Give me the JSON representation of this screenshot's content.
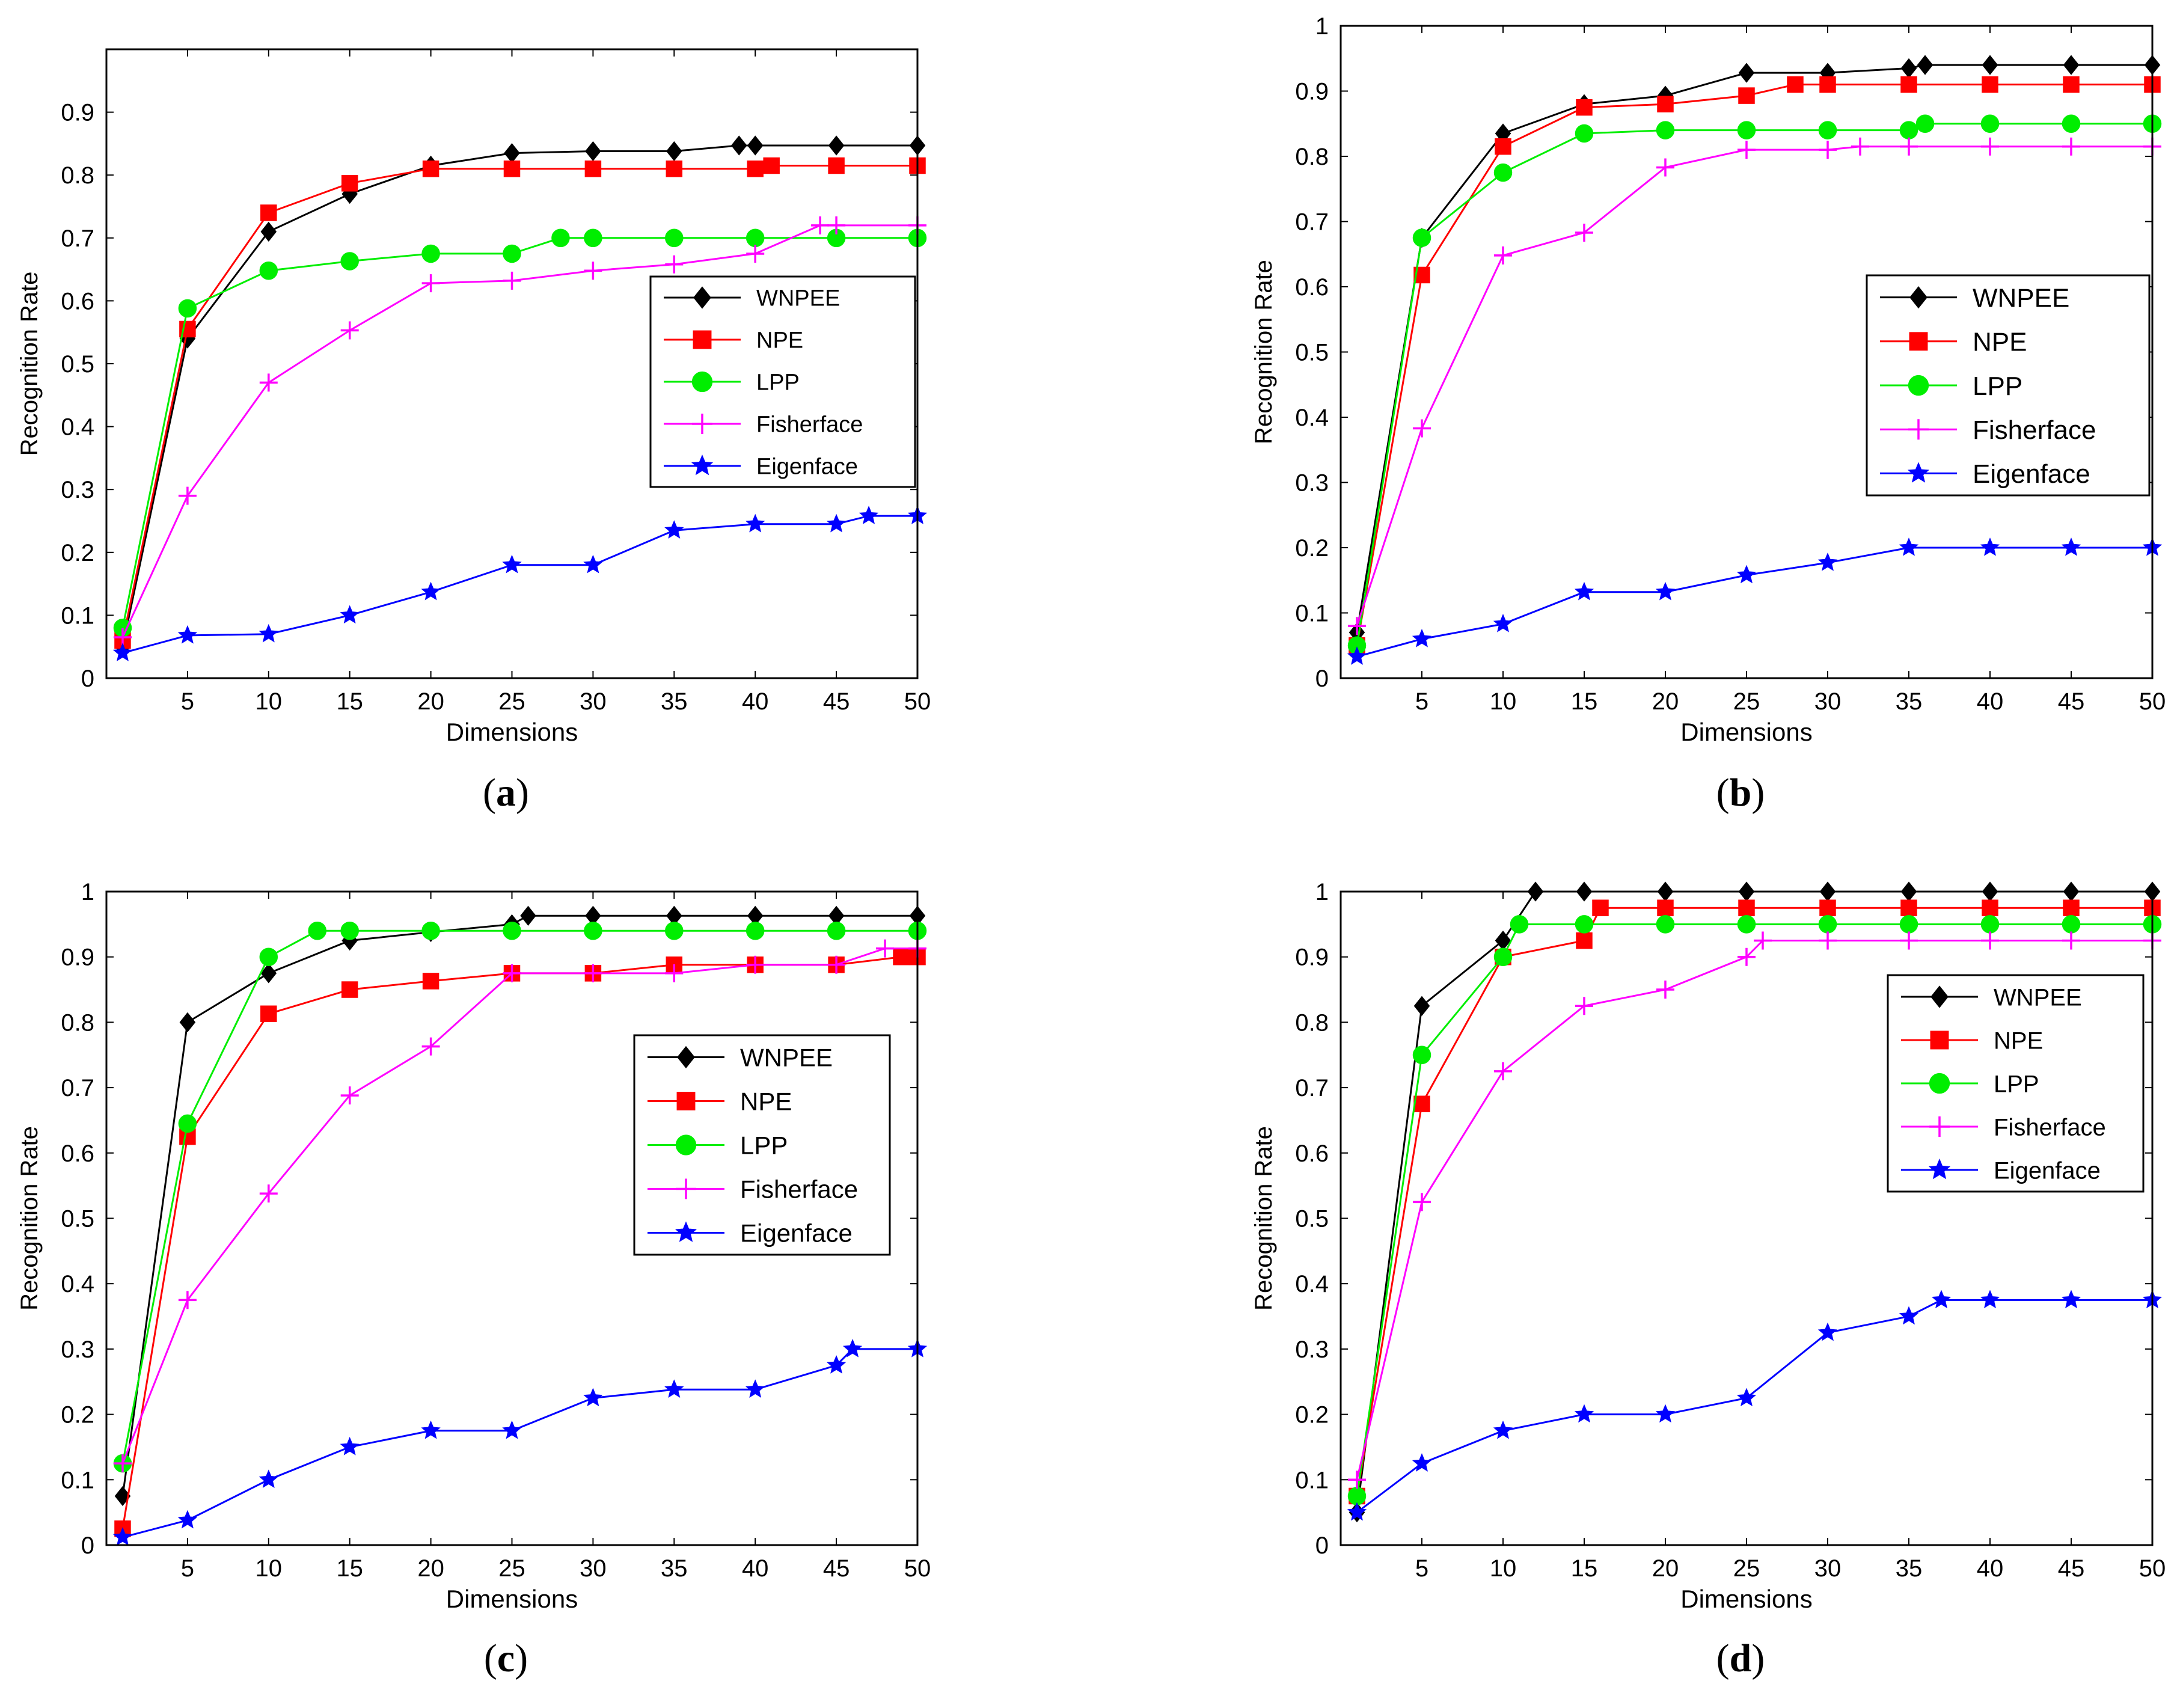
{
  "chart_data": [
    {
      "type": "line",
      "label": "a",
      "xlabel": "Dimensions",
      "ylabel": "Recognition Rate",
      "xlim": [
        0,
        50
      ],
      "ylim": [
        0,
        1
      ],
      "xticks": [
        5,
        10,
        15,
        20,
        25,
        30,
        35,
        40,
        45,
        50
      ],
      "yticks": [
        0,
        0.1,
        0.2,
        0.3,
        0.4,
        0.5,
        0.6,
        0.7,
        0.8,
        0.9
      ],
      "ytick_labels": [
        "0",
        "0.1",
        "0.2",
        "0.3",
        "0.4",
        "0.5",
        "0.6",
        "0.7",
        "0.8",
        "0.9"
      ],
      "legend_position": "center-right",
      "series": [
        {
          "name": "WNPEE",
          "color": "#000000",
          "marker": "diamond",
          "x": [
            1,
            5,
            10,
            15,
            20,
            25,
            30,
            35,
            39,
            40,
            45,
            50
          ],
          "y": [
            0.05,
            0.54,
            0.71,
            0.77,
            0.815,
            0.835,
            0.838,
            0.838,
            0.847,
            0.847,
            0.847,
            0.847
          ]
        },
        {
          "name": "NPE",
          "color": "#ff0000",
          "marker": "square",
          "x": [
            1,
            5,
            10,
            15,
            20,
            25,
            30,
            35,
            40,
            41,
            45,
            50
          ],
          "y": [
            0.06,
            0.555,
            0.74,
            0.787,
            0.81,
            0.81,
            0.81,
            0.81,
            0.81,
            0.815,
            0.815,
            0.815
          ]
        },
        {
          "name": "LPP",
          "color": "#00ee00",
          "marker": "circle",
          "x": [
            1,
            5,
            10,
            15,
            20,
            25,
            28,
            30,
            35,
            40,
            45,
            50
          ],
          "y": [
            0.08,
            0.588,
            0.648,
            0.663,
            0.675,
            0.675,
            0.7,
            0.7,
            0.7,
            0.7,
            0.7,
            0.7
          ]
        },
        {
          "name": "Fisherface",
          "color": "#ff00ff",
          "marker": "plus",
          "x": [
            1,
            5,
            10,
            15,
            20,
            25,
            30,
            35,
            40,
            44,
            45,
            50
          ],
          "y": [
            0.065,
            0.29,
            0.47,
            0.553,
            0.628,
            0.632,
            0.648,
            0.658,
            0.675,
            0.72,
            0.72,
            0.72
          ]
        },
        {
          "name": "Eigenface",
          "color": "#0000ff",
          "marker": "star",
          "x": [
            1,
            5,
            10,
            15,
            20,
            25,
            30,
            35,
            40,
            45,
            47,
            50
          ],
          "y": [
            0.04,
            0.068,
            0.07,
            0.1,
            0.137,
            0.18,
            0.18,
            0.235,
            0.245,
            0.245,
            0.258,
            0.258
          ]
        }
      ]
    },
    {
      "type": "line",
      "label": "b",
      "xlabel": "Dimensions",
      "ylabel": "Recognition Rate",
      "xlim": [
        0,
        50
      ],
      "ylim": [
        0,
        1
      ],
      "xticks": [
        5,
        10,
        15,
        20,
        25,
        30,
        35,
        40,
        45,
        50
      ],
      "yticks": [
        0,
        0.1,
        0.2,
        0.3,
        0.4,
        0.5,
        0.6,
        0.7,
        0.8,
        0.9,
        1
      ],
      "ytick_labels": [
        "0",
        "0.1",
        "0.2",
        "0.3",
        "0.4",
        "0.5",
        "0.6",
        "0.7",
        "0.8",
        "0.9",
        "1"
      ],
      "legend_position": "center-right",
      "series": [
        {
          "name": "WNPEE",
          "color": "#000000",
          "marker": "diamond",
          "x": [
            1,
            5,
            10,
            15,
            20,
            25,
            30,
            35,
            36,
            40,
            45,
            50
          ],
          "y": [
            0.07,
            0.675,
            0.835,
            0.88,
            0.893,
            0.928,
            0.928,
            0.935,
            0.94,
            0.94,
            0.94,
            0.94
          ]
        },
        {
          "name": "NPE",
          "color": "#ff0000",
          "marker": "square",
          "x": [
            1,
            5,
            10,
            15,
            20,
            25,
            28,
            30,
            35,
            40,
            45,
            50
          ],
          "y": [
            0.05,
            0.618,
            0.815,
            0.875,
            0.88,
            0.893,
            0.91,
            0.91,
            0.91,
            0.91,
            0.91,
            0.91
          ]
        },
        {
          "name": "LPP",
          "color": "#00ee00",
          "marker": "circle",
          "x": [
            1,
            5,
            10,
            15,
            20,
            25,
            30,
            35,
            36,
            40,
            45,
            50
          ],
          "y": [
            0.05,
            0.675,
            0.775,
            0.835,
            0.84,
            0.84,
            0.84,
            0.84,
            0.85,
            0.85,
            0.85,
            0.85
          ]
        },
        {
          "name": "Fisherface",
          "color": "#ff00ff",
          "marker": "plus",
          "x": [
            1,
            5,
            10,
            15,
            20,
            25,
            30,
            32,
            35,
            40,
            45,
            50
          ],
          "y": [
            0.08,
            0.383,
            0.648,
            0.683,
            0.783,
            0.81,
            0.81,
            0.815,
            0.815,
            0.815,
            0.815,
            0.815
          ]
        },
        {
          "name": "Eigenface",
          "color": "#0000ff",
          "marker": "star",
          "x": [
            1,
            5,
            10,
            15,
            20,
            25,
            30,
            35,
            40,
            45,
            50
          ],
          "y": [
            0.033,
            0.06,
            0.083,
            0.132,
            0.132,
            0.158,
            0.177,
            0.2,
            0.2,
            0.2,
            0.2
          ]
        }
      ]
    },
    {
      "type": "line",
      "label": "c",
      "xlabel": "Dimensions",
      "ylabel": "Recognition Rate",
      "xlim": [
        0,
        50
      ],
      "ylim": [
        0,
        1
      ],
      "xticks": [
        5,
        10,
        15,
        20,
        25,
        30,
        35,
        40,
        45,
        50
      ],
      "yticks": [
        0,
        0.1,
        0.2,
        0.3,
        0.4,
        0.5,
        0.6,
        0.7,
        0.8,
        0.9,
        1
      ],
      "ytick_labels": [
        "0",
        "0.1",
        "0.2",
        "0.3",
        "0.4",
        "0.5",
        "0.6",
        "0.7",
        "0.8",
        "0.9",
        "1"
      ],
      "legend_position": "center-right",
      "series": [
        {
          "name": "WNPEE",
          "color": "#000000",
          "marker": "diamond",
          "x": [
            1,
            5,
            10,
            15,
            20,
            25,
            26,
            30,
            35,
            40,
            45,
            50
          ],
          "y": [
            0.075,
            0.8,
            0.875,
            0.925,
            0.938,
            0.95,
            0.963,
            0.963,
            0.963,
            0.963,
            0.963,
            0.963
          ]
        },
        {
          "name": "NPE",
          "color": "#ff0000",
          "marker": "square",
          "x": [
            1,
            5,
            10,
            15,
            20,
            25,
            30,
            35,
            40,
            45,
            49,
            50
          ],
          "y": [
            0.025,
            0.625,
            0.813,
            0.85,
            0.863,
            0.875,
            0.875,
            0.888,
            0.888,
            0.888,
            0.9,
            0.9
          ]
        },
        {
          "name": "LPP",
          "color": "#00ee00",
          "marker": "circle",
          "x": [
            1,
            5,
            10,
            13,
            15,
            20,
            25,
            30,
            35,
            40,
            45,
            50
          ],
          "y": [
            0.125,
            0.645,
            0.9,
            0.94,
            0.94,
            0.94,
            0.94,
            0.94,
            0.94,
            0.94,
            0.94,
            0.94
          ]
        },
        {
          "name": "Fisherface",
          "color": "#ff00ff",
          "marker": "plus",
          "x": [
            1,
            5,
            10,
            15,
            20,
            25,
            30,
            35,
            40,
            45,
            48,
            50
          ],
          "y": [
            0.125,
            0.375,
            0.538,
            0.688,
            0.763,
            0.875,
            0.875,
            0.875,
            0.888,
            0.888,
            0.913,
            0.913
          ]
        },
        {
          "name": "Eigenface",
          "color": "#0000ff",
          "marker": "star",
          "x": [
            1,
            5,
            10,
            15,
            20,
            25,
            30,
            35,
            40,
            45,
            46,
            50
          ],
          "y": [
            0.012,
            0.038,
            0.1,
            0.15,
            0.175,
            0.175,
            0.225,
            0.238,
            0.238,
            0.275,
            0.3,
            0.3
          ]
        }
      ]
    },
    {
      "type": "line",
      "label": "d",
      "xlabel": "Dimensions",
      "ylabel": "Recognition Rate",
      "xlim": [
        0,
        50
      ],
      "ylim": [
        0,
        1
      ],
      "xticks": [
        5,
        10,
        15,
        20,
        25,
        30,
        35,
        40,
        45,
        50
      ],
      "yticks": [
        0,
        0.1,
        0.2,
        0.3,
        0.4,
        0.5,
        0.6,
        0.7,
        0.8,
        0.9,
        1
      ],
      "ytick_labels": [
        "0",
        "0.1",
        "0.2",
        "0.3",
        "0.4",
        "0.5",
        "0.6",
        "0.7",
        "0.8",
        "0.9",
        "1"
      ],
      "legend_position": "center-right",
      "series": [
        {
          "name": "WNPEE",
          "color": "#000000",
          "marker": "diamond",
          "x": [
            1,
            5,
            10,
            12,
            15,
            20,
            25,
            30,
            35,
            40,
            45,
            50
          ],
          "y": [
            0.05,
            0.825,
            0.925,
            1.0,
            1.0,
            1.0,
            1.0,
            1.0,
            1.0,
            1.0,
            1.0,
            1.0
          ]
        },
        {
          "name": "NPE",
          "color": "#ff0000",
          "marker": "square",
          "x": [
            1,
            5,
            10,
            15,
            16,
            20,
            25,
            30,
            35,
            40,
            45,
            50
          ],
          "y": [
            0.075,
            0.675,
            0.9,
            0.925,
            0.975,
            0.975,
            0.975,
            0.975,
            0.975,
            0.975,
            0.975,
            0.975
          ]
        },
        {
          "name": "LPP",
          "color": "#00ee00",
          "marker": "circle",
          "x": [
            1,
            5,
            10,
            11,
            15,
            20,
            25,
            30,
            35,
            40,
            45,
            50
          ],
          "y": [
            0.075,
            0.75,
            0.9,
            0.95,
            0.95,
            0.95,
            0.95,
            0.95,
            0.95,
            0.95,
            0.95,
            0.95
          ]
        },
        {
          "name": "Fisherface",
          "color": "#ff00ff",
          "marker": "plus",
          "x": [
            1,
            5,
            10,
            15,
            20,
            25,
            26,
            30,
            35,
            40,
            45,
            50
          ],
          "y": [
            0.1,
            0.525,
            0.725,
            0.825,
            0.85,
            0.9,
            0.925,
            0.925,
            0.925,
            0.925,
            0.925,
            0.925
          ]
        },
        {
          "name": "Eigenface",
          "color": "#0000ff",
          "marker": "star",
          "x": [
            1,
            5,
            10,
            15,
            20,
            25,
            30,
            35,
            37,
            40,
            45,
            50
          ],
          "y": [
            0.05,
            0.125,
            0.175,
            0.2,
            0.2,
            0.225,
            0.325,
            0.35,
            0.375,
            0.375,
            0.375,
            0.375
          ]
        }
      ]
    }
  ]
}
